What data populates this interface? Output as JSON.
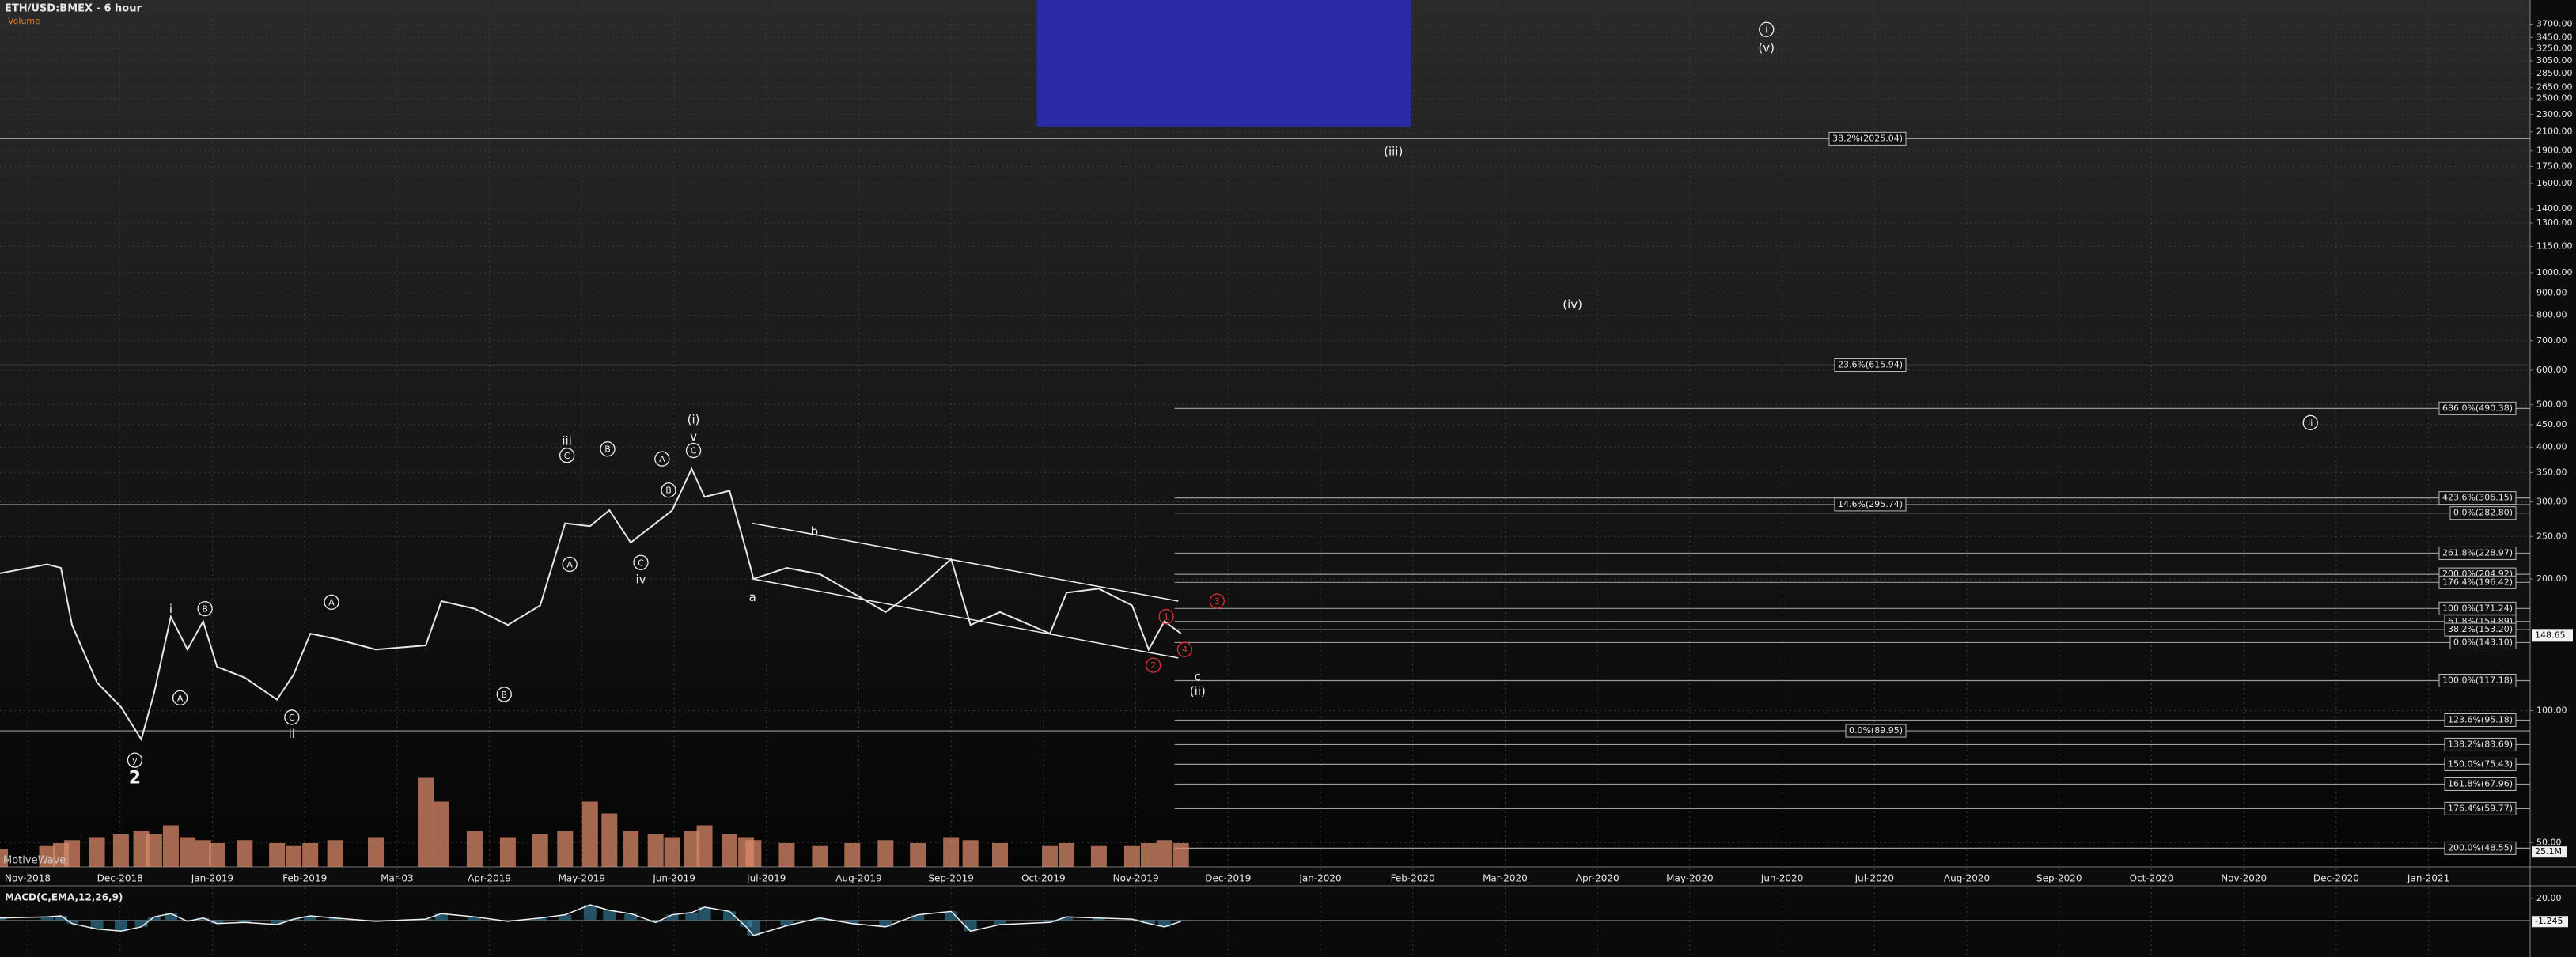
{
  "chart_data": {
    "type": "line",
    "title": "ETH/USD:BMEX - 6 hour",
    "subtitle": "Volume",
    "watermark": "MotiveWave",
    "log_scale": true,
    "grid": true,
    "xlim": [
      -0.3,
      27.1
    ],
    "xticks": [
      {
        "value": 0,
        "label": "Nov-2018"
      },
      {
        "value": 1,
        "label": "Dec-2018"
      },
      {
        "value": 2,
        "label": "Jan-2019"
      },
      {
        "value": 3,
        "label": "Feb-2019"
      },
      {
        "value": 4,
        "label": "Mar-03"
      },
      {
        "value": 5,
        "label": "Apr-2019"
      },
      {
        "value": 6,
        "label": "May-2019"
      },
      {
        "value": 7,
        "label": "Jun-2019"
      },
      {
        "value": 8,
        "label": "Jul-2019"
      },
      {
        "value": 9,
        "label": "Aug-2019"
      },
      {
        "value": 10,
        "label": "Sep-2019"
      },
      {
        "value": 11,
        "label": "Oct-2019"
      },
      {
        "value": 12,
        "label": "Nov-2019"
      },
      {
        "value": 13,
        "label": "Dec-2019"
      },
      {
        "value": 14,
        "label": "Jan-2020"
      },
      {
        "value": 15,
        "label": "Feb-2020"
      },
      {
        "value": 16,
        "label": "Mar-2020"
      },
      {
        "value": 17,
        "label": "Apr-2020"
      },
      {
        "value": 18,
        "label": "May-2020"
      },
      {
        "value": 19,
        "label": "Jun-2020"
      },
      {
        "value": 20,
        "label": "Jul-2020"
      },
      {
        "value": 21,
        "label": "Aug-2020"
      },
      {
        "value": 22,
        "label": "Sep-2020"
      },
      {
        "value": 23,
        "label": "Oct-2020"
      },
      {
        "value": 24,
        "label": "Nov-2020"
      },
      {
        "value": 25,
        "label": "Dec-2020"
      },
      {
        "value": 26,
        "label": "Jan-2021"
      }
    ],
    "ylim": [
      44,
      4200
    ],
    "yticks": [
      {
        "value": 3700,
        "label": "3700.00"
      },
      {
        "value": 3450,
        "label": "3450.00"
      },
      {
        "value": 3250,
        "label": "3250.00"
      },
      {
        "value": 3050,
        "label": "3050.00"
      },
      {
        "value": 2850,
        "label": "2850.00"
      },
      {
        "value": 2650,
        "label": "2650.00"
      },
      {
        "value": 2500,
        "label": "2500.00"
      },
      {
        "value": 2300,
        "label": "2300.00"
      },
      {
        "value": 2100,
        "label": "2100.00"
      },
      {
        "value": 1900,
        "label": "1900.00"
      },
      {
        "value": 1750,
        "label": "1750.00"
      },
      {
        "value": 1600,
        "label": "1600.00"
      },
      {
        "value": 1400,
        "label": "1400.00"
      },
      {
        "value": 1300,
        "label": "1300.00"
      },
      {
        "value": 1150,
        "label": "1150.00"
      },
      {
        "value": 1000,
        "label": "1000.00"
      },
      {
        "value": 900,
        "label": "900.00"
      },
      {
        "value": 800,
        "label": "800.00"
      },
      {
        "value": 700,
        "label": "700.00"
      },
      {
        "value": 600,
        "label": "600.00"
      },
      {
        "value": 500,
        "label": "500.00"
      },
      {
        "value": 450,
        "label": "450.00"
      },
      {
        "value": 400,
        "label": "400.00"
      },
      {
        "value": 350,
        "label": "350.00"
      },
      {
        "value": 300,
        "label": "300.00"
      },
      {
        "value": 250,
        "label": "250.00"
      },
      {
        "value": 200,
        "label": "200.00"
      },
      {
        "value": 100,
        "label": "100.00"
      },
      {
        "value": 50,
        "label": "50.00"
      }
    ],
    "last_price": 148.65,
    "price": {
      "color": "#e6e6e6",
      "x": [
        -0.3,
        0.21,
        0.36,
        0.48,
        0.75,
        1.01,
        1.23,
        1.37,
        1.55,
        1.73,
        1.9,
        2.05,
        2.35,
        2.7,
        2.88,
        3.06,
        3.33,
        3.77,
        4.31,
        4.48,
        4.84,
        5.2,
        5.55,
        5.82,
        6.09,
        6.3,
        6.53,
        6.8,
        6.98,
        7.19,
        7.33,
        7.6,
        7.78,
        7.86,
        8.22,
        8.58,
        8.93,
        9.29,
        9.64,
        10.0,
        10.21,
        10.53,
        11.07,
        11.25,
        11.6,
        11.96,
        12.14,
        12.31,
        12.49
      ],
      "values": [
        206,
        216,
        212,
        157,
        116,
        102,
        86,
        110,
        164,
        138,
        160,
        126,
        119,
        106,
        121,
        150,
        146,
        138,
        141,
        178,
        171,
        157,
        174,
        268,
        264,
        287,
        242,
        268,
        287,
        357,
        308,
        318,
        232,
        200,
        212,
        205,
        186,
        168,
        190,
        222,
        157,
        168,
        150,
        186,
        190,
        174,
        138,
        160,
        150
      ]
    },
    "volume": {
      "color": "#d98a6a",
      "vlim": [
        0,
        200
      ],
      "vticks": [
        {
          "value": 25.1,
          "label": "25.1M"
        }
      ],
      "values": [
        30,
        35,
        40,
        45,
        50,
        55,
        60,
        55,
        70,
        50,
        45,
        40,
        45,
        40,
        35,
        40,
        45,
        50,
        150,
        110,
        60,
        50,
        55,
        60,
        110,
        90,
        60,
        55,
        50,
        60,
        70,
        55,
        50,
        45,
        40,
        35,
        40,
        45,
        40,
        50,
        45,
        40,
        35,
        40,
        35,
        35,
        40,
        45,
        40
      ]
    },
    "macd": {
      "title": "MACD(C,EMA,12,26,9)",
      "color": "#f0f0f0",
      "mlim": [
        -30,
        30
      ],
      "mticks": [
        {
          "value": 20,
          "label": "20.00"
        }
      ],
      "last": -1.245,
      "values": [
        2,
        3,
        4,
        -3,
        -8,
        -10,
        -6,
        3,
        6,
        -1,
        2,
        -3,
        -2,
        -4,
        1,
        4,
        2,
        -1,
        1,
        6,
        3,
        -1,
        2,
        5,
        14,
        9,
        6,
        -2,
        5,
        7,
        12,
        8,
        -6,
        -14,
        -5,
        2,
        -3,
        -6,
        5,
        8,
        -10,
        -4,
        -2,
        3,
        2,
        1,
        -3,
        -6,
        -1
      ]
    },
    "boxes": [
      {
        "x": [
          10.93,
          14.98
        ],
        "y": [
          2160,
          4200
        ],
        "color": "#2a2aa6"
      }
    ],
    "trendlines": [
      {
        "x": [
          7.85,
          12.46
        ],
        "y": [
          268,
          178
        ]
      },
      {
        "x": [
          7.85,
          12.46
        ],
        "y": [
          200,
          132
        ]
      }
    ],
    "fib_groups": [
      {
        "from_x": -0.3,
        "levels": [
          {
            "label": "38.2%(2025.04)",
            "value": 2025.04
          },
          {
            "label": "23.6%(615.94)",
            "value": 615.94
          },
          {
            "label": "14.6%(295.74)",
            "value": 295.74
          },
          {
            "label": "0.0%(89.95)",
            "value": 89.95
          }
        ]
      },
      {
        "from_x": 12.42,
        "levels": [
          {
            "label": "686.0%(490.38)",
            "value": 490.38
          },
          {
            "label": "423.6%(306.15)",
            "value": 306.15
          },
          {
            "label": "0.0%(282.80)",
            "value": 282.8
          },
          {
            "label": "261.8%(228.97)",
            "value": 228.97
          },
          {
            "label": "200.0%(204.92)",
            "value": 204.92
          },
          {
            "label": "176.4%(196.42)",
            "value": 196.42
          },
          {
            "label": "100.0%(171.24)",
            "value": 171.24
          },
          {
            "label": "61.8%(159.89)",
            "value": 159.89
          },
          {
            "label": "38.2%(153.20)",
            "value": 153.2
          },
          {
            "label": "0.0%(143.10)",
            "value": 143.1
          },
          {
            "label": "100.0%(117.18)",
            "value": 117.18
          },
          {
            "label": "123.6%(95.18)",
            "value": 95.18
          },
          {
            "label": "138.2%(83.69)",
            "value": 83.69
          },
          {
            "label": "150.0%(75.43)",
            "value": 75.43
          },
          {
            "label": "161.8%(67.96)",
            "value": 67.96
          },
          {
            "label": "176.4%(59.77)",
            "value": 59.77
          },
          {
            "label": "200.0%(48.55)",
            "value": 48.55
          }
        ]
      }
    ],
    "annotations": [
      {
        "text": "(i)",
        "x": 7.21,
        "y": 463
      },
      {
        "text": "v",
        "x": 7.21,
        "y": 424
      },
      {
        "text": "C",
        "x": 7.21,
        "y": 393,
        "circled": true
      },
      {
        "text": "iii",
        "x": 5.84,
        "y": 414
      },
      {
        "text": "C",
        "x": 5.84,
        "y": 383,
        "circled": true
      },
      {
        "text": "B",
        "x": 6.28,
        "y": 396,
        "circled": true
      },
      {
        "text": "A",
        "x": 6.87,
        "y": 376,
        "circled": true
      },
      {
        "text": "B",
        "x": 6.94,
        "y": 319,
        "circled": true
      },
      {
        "text": "C",
        "x": 6.64,
        "y": 218,
        "circled": true
      },
      {
        "text": "iv",
        "x": 6.64,
        "y": 200
      },
      {
        "text": "A",
        "x": 5.87,
        "y": 216,
        "circled": true
      },
      {
        "text": "i",
        "x": 1.55,
        "y": 171
      },
      {
        "text": "B",
        "x": 1.92,
        "y": 171,
        "circled": true
      },
      {
        "text": "A",
        "x": 1.65,
        "y": 107,
        "circled": true
      },
      {
        "text": "A",
        "x": 3.29,
        "y": 177,
        "circled": true
      },
      {
        "text": "B",
        "x": 5.16,
        "y": 109,
        "circled": true
      },
      {
        "text": "C",
        "x": 2.86,
        "y": 96.6,
        "circled": true
      },
      {
        "text": "ii",
        "x": 2.86,
        "y": 88.6
      },
      {
        "text": "y",
        "x": 1.16,
        "y": 77.1,
        "circled": true
      },
      {
        "text": "2",
        "x": 1.16,
        "y": 70.2,
        "big": true
      },
      {
        "text": "(iii)",
        "x": 14.79,
        "y": 1897
      },
      {
        "text": "(iv)",
        "x": 16.73,
        "y": 849
      },
      {
        "text": "i",
        "x": 18.83,
        "y": 3597,
        "circled": true
      },
      {
        "text": "(v)",
        "x": 18.83,
        "y": 3273
      },
      {
        "text": "ii",
        "x": 24.72,
        "y": 455,
        "circled": true
      },
      {
        "text": "a",
        "x": 7.85,
        "y": 182
      },
      {
        "text": "b",
        "x": 8.52,
        "y": 257
      },
      {
        "text": "c",
        "x": 12.67,
        "y": 120
      },
      {
        "text": "(ii)",
        "x": 12.67,
        "y": 111
      },
      {
        "text": "1",
        "x": 12.33,
        "y": 164,
        "circled": true,
        "color": "#e03030"
      },
      {
        "text": "2",
        "x": 12.19,
        "y": 127,
        "circled": true,
        "color": "#e03030"
      },
      {
        "text": "3",
        "x": 12.88,
        "y": 178,
        "circled": true,
        "color": "#e03030"
      },
      {
        "text": "4",
        "x": 12.53,
        "y": 138,
        "circled": true,
        "color": "#e03030"
      }
    ]
  }
}
